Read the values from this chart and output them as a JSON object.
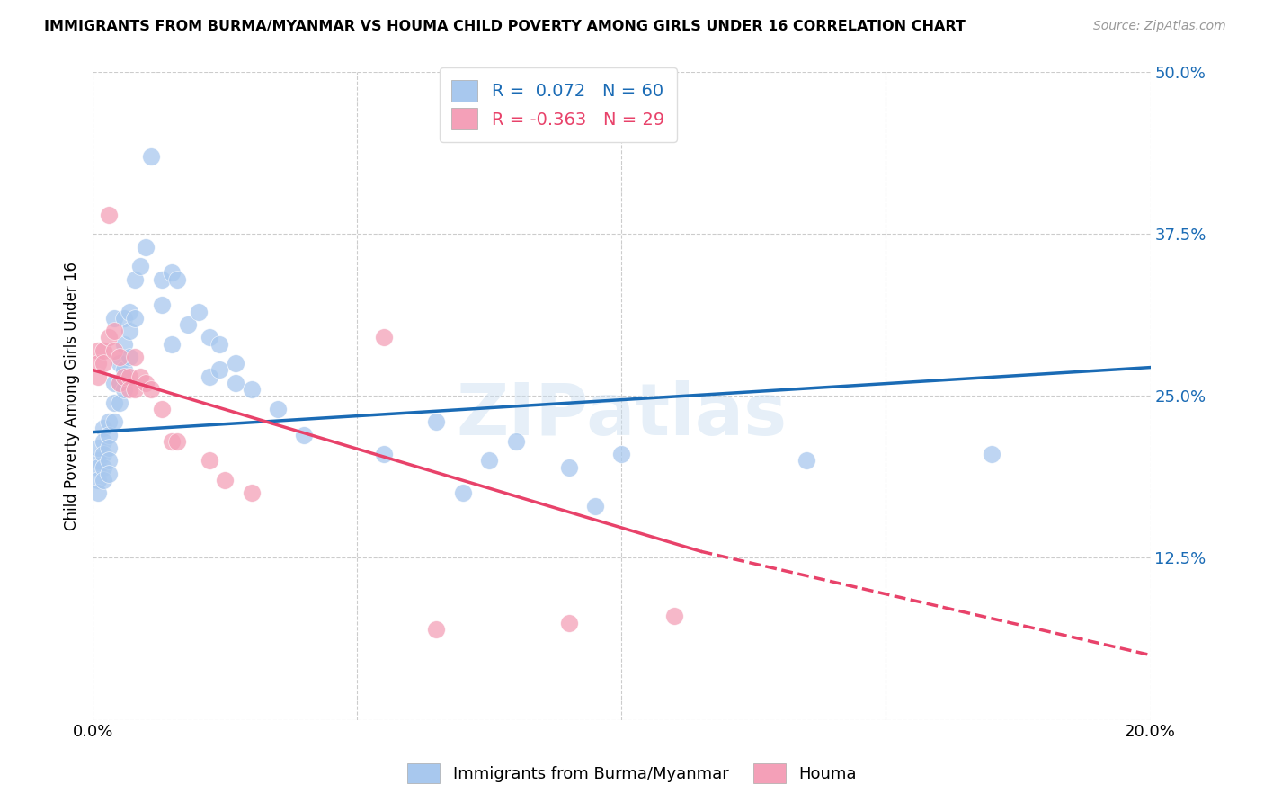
{
  "title": "IMMIGRANTS FROM BURMA/MYANMAR VS HOUMA CHILD POVERTY AMONG GIRLS UNDER 16 CORRELATION CHART",
  "source": "Source: ZipAtlas.com",
  "ylabel": "Child Poverty Among Girls Under 16",
  "xlim": [
    0.0,
    0.2
  ],
  "ylim": [
    0.0,
    0.5
  ],
  "blue_color": "#A8C8EE",
  "pink_color": "#F4A0B8",
  "blue_line_color": "#1A6BB5",
  "pink_line_color": "#E8426A",
  "watermark": "ZIPatlas",
  "blue_line": [
    [
      0.0,
      0.222
    ],
    [
      0.2,
      0.272
    ]
  ],
  "pink_line_solid": [
    [
      0.0,
      0.27
    ],
    [
      0.115,
      0.13
    ]
  ],
  "pink_line_dashed": [
    [
      0.115,
      0.13
    ],
    [
      0.2,
      0.05
    ]
  ],
  "scatter_blue": [
    [
      0.001,
      0.2
    ],
    [
      0.001,
      0.21
    ],
    [
      0.001,
      0.195
    ],
    [
      0.001,
      0.185
    ],
    [
      0.001,
      0.175
    ],
    [
      0.002,
      0.225
    ],
    [
      0.002,
      0.215
    ],
    [
      0.002,
      0.205
    ],
    [
      0.002,
      0.195
    ],
    [
      0.002,
      0.185
    ],
    [
      0.003,
      0.23
    ],
    [
      0.003,
      0.22
    ],
    [
      0.003,
      0.21
    ],
    [
      0.003,
      0.2
    ],
    [
      0.003,
      0.19
    ],
    [
      0.004,
      0.31
    ],
    [
      0.004,
      0.26
    ],
    [
      0.004,
      0.245
    ],
    [
      0.004,
      0.23
    ],
    [
      0.005,
      0.275
    ],
    [
      0.005,
      0.26
    ],
    [
      0.005,
      0.245
    ],
    [
      0.006,
      0.31
    ],
    [
      0.006,
      0.29
    ],
    [
      0.006,
      0.27
    ],
    [
      0.006,
      0.255
    ],
    [
      0.007,
      0.315
    ],
    [
      0.007,
      0.3
    ],
    [
      0.007,
      0.28
    ],
    [
      0.008,
      0.34
    ],
    [
      0.008,
      0.31
    ],
    [
      0.009,
      0.35
    ],
    [
      0.01,
      0.365
    ],
    [
      0.011,
      0.435
    ],
    [
      0.013,
      0.34
    ],
    [
      0.013,
      0.32
    ],
    [
      0.015,
      0.345
    ],
    [
      0.015,
      0.29
    ],
    [
      0.016,
      0.34
    ],
    [
      0.018,
      0.305
    ],
    [
      0.02,
      0.315
    ],
    [
      0.022,
      0.295
    ],
    [
      0.022,
      0.265
    ],
    [
      0.024,
      0.29
    ],
    [
      0.024,
      0.27
    ],
    [
      0.027,
      0.275
    ],
    [
      0.027,
      0.26
    ],
    [
      0.03,
      0.255
    ],
    [
      0.035,
      0.24
    ],
    [
      0.04,
      0.22
    ],
    [
      0.055,
      0.205
    ],
    [
      0.065,
      0.23
    ],
    [
      0.07,
      0.175
    ],
    [
      0.075,
      0.2
    ],
    [
      0.08,
      0.215
    ],
    [
      0.09,
      0.195
    ],
    [
      0.095,
      0.165
    ],
    [
      0.1,
      0.205
    ],
    [
      0.135,
      0.2
    ],
    [
      0.17,
      0.205
    ]
  ],
  "scatter_pink": [
    [
      0.001,
      0.285
    ],
    [
      0.001,
      0.275
    ],
    [
      0.001,
      0.265
    ],
    [
      0.002,
      0.285
    ],
    [
      0.002,
      0.275
    ],
    [
      0.003,
      0.39
    ],
    [
      0.003,
      0.295
    ],
    [
      0.004,
      0.3
    ],
    [
      0.004,
      0.285
    ],
    [
      0.005,
      0.28
    ],
    [
      0.005,
      0.26
    ],
    [
      0.006,
      0.265
    ],
    [
      0.007,
      0.265
    ],
    [
      0.007,
      0.255
    ],
    [
      0.008,
      0.28
    ],
    [
      0.008,
      0.255
    ],
    [
      0.009,
      0.265
    ],
    [
      0.01,
      0.26
    ],
    [
      0.011,
      0.255
    ],
    [
      0.013,
      0.24
    ],
    [
      0.015,
      0.215
    ],
    [
      0.016,
      0.215
    ],
    [
      0.022,
      0.2
    ],
    [
      0.025,
      0.185
    ],
    [
      0.03,
      0.175
    ],
    [
      0.055,
      0.295
    ],
    [
      0.065,
      0.07
    ],
    [
      0.09,
      0.075
    ],
    [
      0.11,
      0.08
    ]
  ]
}
